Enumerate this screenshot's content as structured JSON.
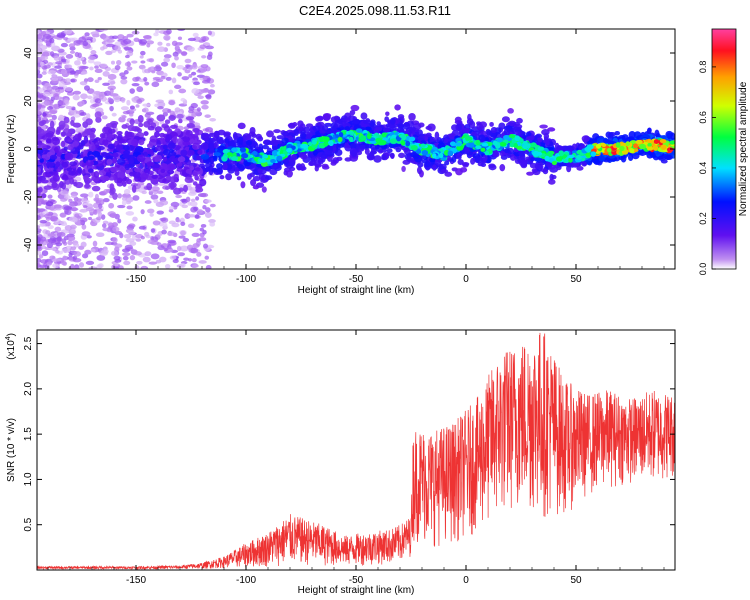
{
  "figure": {
    "title": "C2E4.2025.098.11.53.R11"
  },
  "chart_data": [
    {
      "type": "heatmap",
      "xlabel": "Height of straight line (km)",
      "ylabel": "Frequency (Hz)",
      "xlim": [
        -195,
        95
      ],
      "ylim": [
        -50,
        50
      ],
      "xticks": [
        -150,
        -100,
        -50,
        0,
        50
      ],
      "yticks": [
        -40,
        -20,
        0,
        20,
        40
      ],
      "colorbar": {
        "label": "Normalized spectral amplitude",
        "range": [
          0.0,
          0.95
        ],
        "ticks": [
          "0.0",
          "0.2",
          "0.4",
          "0.6",
          "0.8"
        ],
        "tick_values": [
          0.0,
          0.2,
          0.4,
          0.6,
          0.8
        ],
        "colormap": [
          "#ffffff",
          "#b070f0",
          "#6010f0",
          "#0010ff",
          "#00e0ff",
          "#00ff40",
          "#d0ff00",
          "#ffa000",
          "#ff1020",
          "#ff40a0"
        ]
      },
      "ridge": {
        "description_points": [
          [
            -195,
            -4
          ],
          [
            -160,
            -3
          ],
          [
            -140,
            -3
          ],
          [
            -120,
            -3
          ],
          [
            -100,
            -2
          ],
          [
            -90,
            -5
          ],
          [
            -80,
            0
          ],
          [
            -70,
            2
          ],
          [
            -60,
            4
          ],
          [
            -50,
            6
          ],
          [
            -40,
            4
          ],
          [
            -30,
            5
          ],
          [
            -20,
            0
          ],
          [
            -10,
            -2
          ],
          [
            0,
            4
          ],
          [
            10,
            0
          ],
          [
            20,
            4
          ],
          [
            30,
            0
          ],
          [
            40,
            -4
          ],
          [
            50,
            -3
          ],
          [
            60,
            0
          ],
          [
            70,
            0
          ],
          [
            80,
            2
          ],
          [
            95,
            1
          ]
        ]
      }
    },
    {
      "type": "line",
      "xlabel": "Height of straight line (km)",
      "ylabel": "SNR (10 * v/v)",
      "yscale_label": "(x10",
      "yscale_exp": "4",
      "xlim": [
        -195,
        95
      ],
      "ylim": [
        0,
        2.65
      ],
      "xticks": [
        -150,
        -100,
        -50,
        0,
        50
      ],
      "yticks": [
        0.5,
        1.0,
        1.5,
        2.0,
        2.5
      ],
      "series": [
        {
          "color": "#ee3333",
          "envelope": [
            [
              -195,
              0.01,
              0.04
            ],
            [
              -150,
              0.01,
              0.04
            ],
            [
              -130,
              0.01,
              0.05
            ],
            [
              -120,
              0.01,
              0.08
            ],
            [
              -110,
              0.02,
              0.15
            ],
            [
              -100,
              0.02,
              0.3
            ],
            [
              -90,
              0.03,
              0.42
            ],
            [
              -80,
              0.05,
              0.62
            ],
            [
              -75,
              0.05,
              0.58
            ],
            [
              -65,
              0.04,
              0.5
            ],
            [
              -55,
              0.04,
              0.38
            ],
            [
              -45,
              0.05,
              0.42
            ],
            [
              -35,
              0.06,
              0.45
            ],
            [
              -30,
              0.08,
              0.5
            ],
            [
              -25,
              0.15,
              0.6
            ],
            [
              -24,
              0.3,
              1.6
            ],
            [
              -15,
              0.25,
              1.55
            ],
            [
              -5,
              0.3,
              1.65
            ],
            [
              5,
              0.4,
              1.9
            ],
            [
              15,
              0.55,
              2.4
            ],
            [
              25,
              0.65,
              2.55
            ],
            [
              35,
              0.55,
              2.7
            ],
            [
              45,
              0.6,
              2.1
            ],
            [
              55,
              0.8,
              1.95
            ],
            [
              65,
              0.9,
              2.0
            ],
            [
              75,
              0.95,
              1.9
            ],
            [
              85,
              0.95,
              2.0
            ],
            [
              95,
              1.0,
              1.95
            ]
          ]
        }
      ]
    }
  ]
}
